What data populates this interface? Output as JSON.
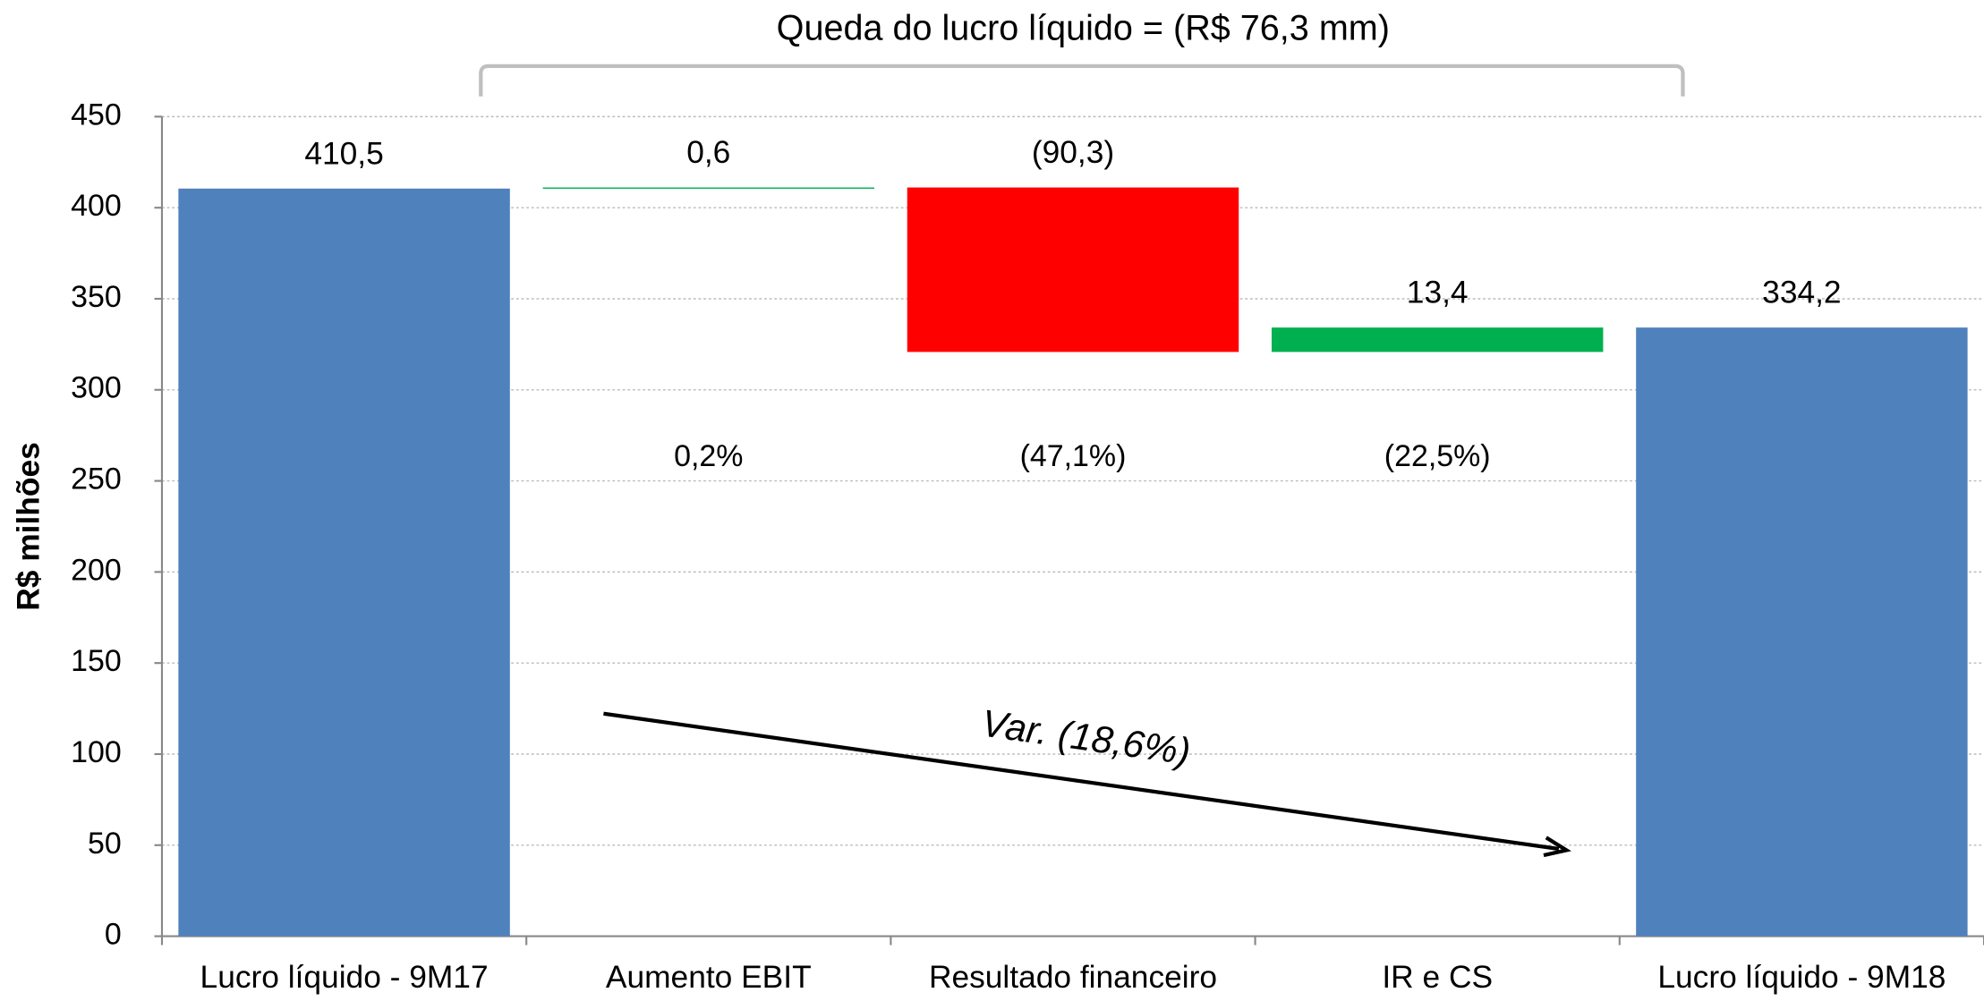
{
  "chart_data": {
    "type": "waterfall",
    "title": "Queda do lucro líquido = (R$ 76,3 mm)",
    "y_label": "R$ milhões",
    "annotation": "Var. (18,6%)",
    "categories": [
      "Lucro líquido - 9M17",
      "Aumento EBIT",
      "Resultado financeiro",
      "IR e CS",
      "Lucro líquido - 9M18"
    ],
    "values": [
      410.5,
      0.6,
      -90.3,
      13.4,
      334.2
    ],
    "value_labels": [
      "410,5",
      "0,6",
      "(90,3)",
      "13,4",
      "334,2"
    ],
    "pct_labels": [
      null,
      "0,2%",
      "(47,1%)",
      "(22,5%)",
      null
    ],
    "kinds": [
      "total",
      "delta",
      "delta",
      "delta",
      "total"
    ],
    "colors": [
      "#4f81bd",
      "#00b050",
      "#ff0000",
      "#00b050",
      "#4f81bd"
    ],
    "ylim": [
      0,
      450
    ],
    "yticks": [
      0,
      50,
      100,
      150,
      200,
      250,
      300,
      350,
      400,
      450
    ],
    "grid": true
  }
}
